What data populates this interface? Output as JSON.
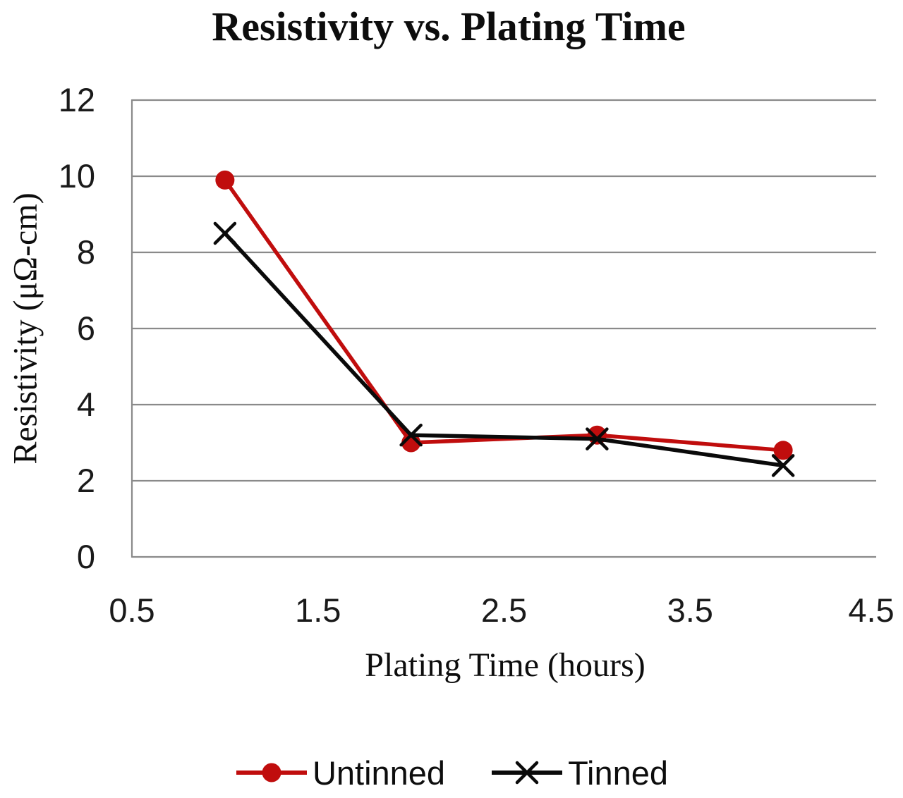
{
  "chart_data": {
    "type": "line",
    "title": "Resistivity vs. Plating Time",
    "xlabel": "Plating Time (hours)",
    "ylabel": "Resistivity (μΩ-cm)",
    "x": [
      1,
      2,
      3,
      4
    ],
    "series": [
      {
        "name": "Untinned",
        "color": "#C00D0D",
        "marker": "circle",
        "values": [
          9.9,
          3.0,
          3.2,
          2.8
        ]
      },
      {
        "name": "Tinned",
        "color": "#0A0A0A",
        "marker": "x",
        "values": [
          8.5,
          3.2,
          3.1,
          2.4
        ]
      }
    ],
    "xlim": [
      0.5,
      4.5
    ],
    "ylim": [
      0,
      12
    ],
    "xticks": [
      0.5,
      1.5,
      2.5,
      3.5,
      4.5
    ],
    "xtick_labels": [
      "0.5",
      "1.5",
      "2.5",
      "3.5",
      "4.5"
    ],
    "yticks": [
      0,
      2,
      4,
      6,
      8,
      10,
      12
    ],
    "ytick_labels": [
      "0",
      "2",
      "4",
      "6",
      "8",
      "10",
      "12"
    ],
    "grid": "horizontal",
    "grid_color": "#8A8A8A",
    "axis_line_color": "#8A8A8A",
    "legend_position": "bottom"
  }
}
